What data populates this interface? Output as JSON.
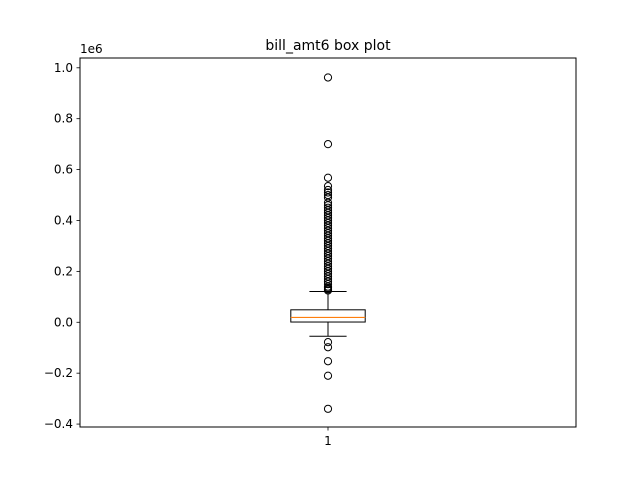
{
  "chart_data": {
    "type": "box",
    "title": "bill_amt6 box plot",
    "axis_scale_label": "1e6",
    "x_tick_labels": [
      "1"
    ],
    "y_tick_values": [
      -0.4,
      -0.2,
      0.0,
      0.2,
      0.4,
      0.6,
      0.8,
      1.0
    ],
    "y_tick_labels": [
      "−0.4",
      "−0.2",
      "0.0",
      "0.2",
      "0.4",
      "0.6",
      "0.8",
      "1.0"
    ],
    "ylim": [
      -0.4115,
      1.0385
    ],
    "xlim": [
      0.5,
      1.5
    ],
    "grid": false,
    "colors": {
      "median": "#ff7f0e",
      "box": "#000000",
      "flier": "#000000"
    },
    "boxes": [
      {
        "label": "1",
        "whisker_low": -0.055,
        "q1": 0.001,
        "median": 0.019,
        "q3": 0.049,
        "whisker_high": 0.121,
        "fliers_high": [
          0.125,
          0.13,
          0.135,
          0.14,
          0.15,
          0.16,
          0.17,
          0.18,
          0.19,
          0.2,
          0.21,
          0.22,
          0.23,
          0.24,
          0.25,
          0.26,
          0.27,
          0.28,
          0.29,
          0.3,
          0.31,
          0.32,
          0.33,
          0.34,
          0.35,
          0.36,
          0.37,
          0.38,
          0.39,
          0.4,
          0.41,
          0.42,
          0.43,
          0.44,
          0.45,
          0.46,
          0.47,
          0.49,
          0.5,
          0.51,
          0.52,
          0.535,
          0.568,
          0.7,
          0.962
        ],
        "fliers_low": [
          -0.078,
          -0.098,
          -0.153,
          -0.21,
          -0.34
        ]
      }
    ]
  }
}
